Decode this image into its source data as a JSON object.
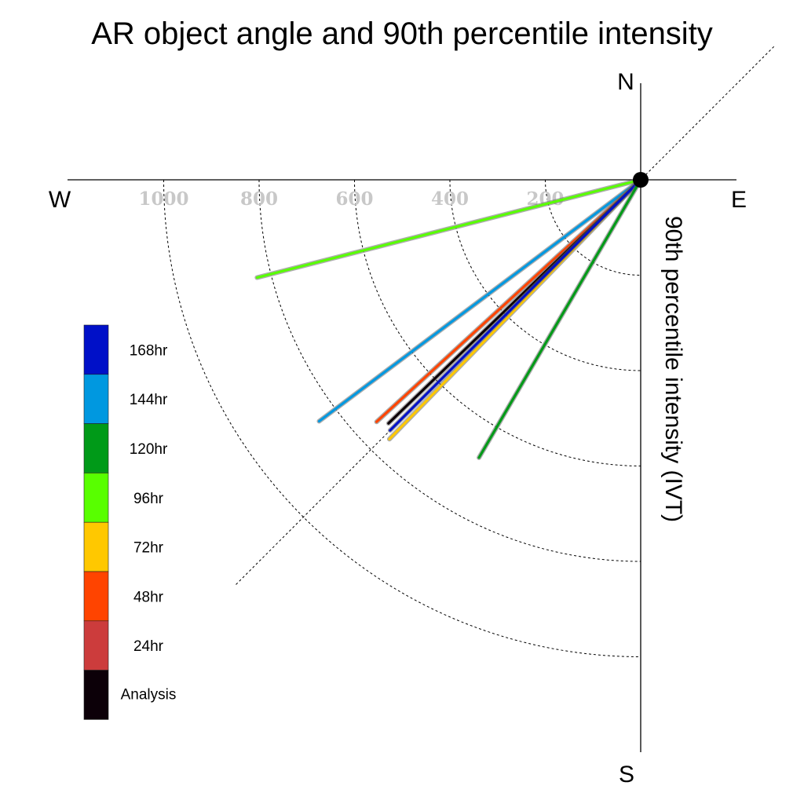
{
  "chart_data": {
    "type": "polar-vector",
    "title": "AR object angle and 90th percentile intensity",
    "axis_label": "90th percentile intensity (IVT)",
    "compass": {
      "north": "N",
      "south": "S",
      "east": "E",
      "west": "W"
    },
    "radial_ticks": [
      {
        "value": 200,
        "label": "200"
      },
      {
        "value": 400,
        "label": "400"
      },
      {
        "value": 600,
        "label": "600"
      },
      {
        "value": 800,
        "label": "800"
      },
      {
        "value": 1000,
        "label": "1000"
      }
    ],
    "rmax": 1200,
    "grid": true,
    "reference_direction_deg": 45,
    "legend": [
      {
        "label": "168hr",
        "color": "#0010c8"
      },
      {
        "label": "144hr",
        "color": "#0098e0"
      },
      {
        "label": "120hr",
        "color": "#009a18"
      },
      {
        "label": "96hr",
        "color": "#58ff00"
      },
      {
        "label": "72hr",
        "color": "#ffc800"
      },
      {
        "label": "48hr",
        "color": "#ff4400"
      },
      {
        "label": "24hr",
        "color": "#cc3c3c"
      },
      {
        "label": "Analysis",
        "color": "#0c0008"
      }
    ],
    "series": [
      {
        "name": "96hr",
        "angle_deg": 14.3,
        "value": 830,
        "color": "#58ff00"
      },
      {
        "name": "144hr",
        "angle_deg": 36.9,
        "value": 843,
        "color": "#0098e0"
      },
      {
        "name": "48hr",
        "angle_deg": 42.5,
        "value": 751,
        "color": "#ff4400"
      },
      {
        "name": "72hr",
        "angle_deg": 45.9,
        "value": 757,
        "color": "#ffc800"
      },
      {
        "name": "Analysis",
        "angle_deg": 44.0,
        "value": 735,
        "color": "#0c0008"
      },
      {
        "name": "168hr",
        "angle_deg": 45.0,
        "value": 743,
        "color": "#0010c8"
      },
      {
        "name": "120hr",
        "angle_deg": 59.8,
        "value": 674,
        "color": "#009a18"
      }
    ]
  }
}
